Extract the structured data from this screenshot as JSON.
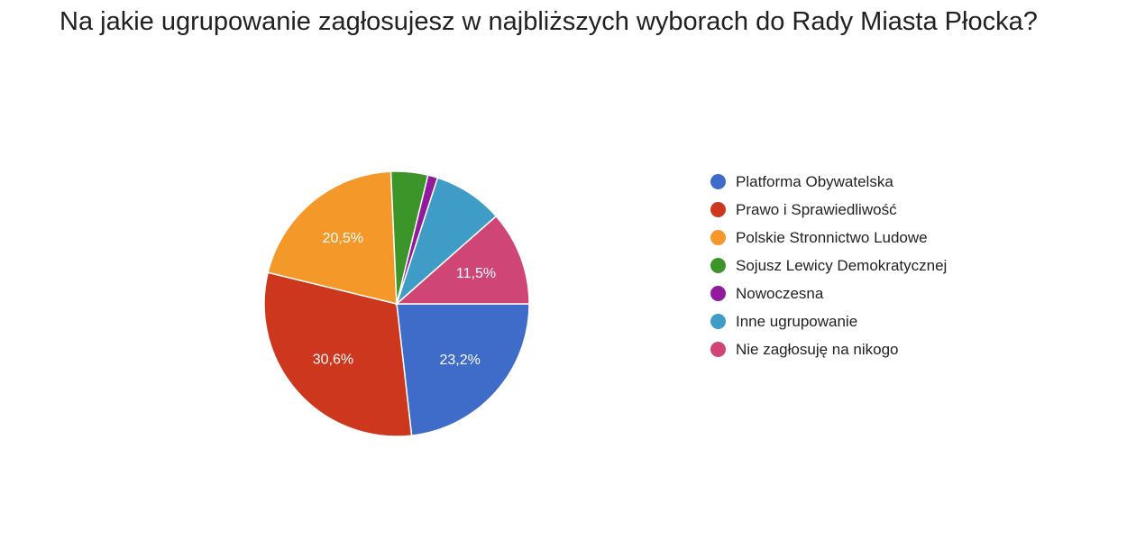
{
  "chart_data": {
    "type": "pie",
    "title": "Na jakie ugrupowanie zagłosujesz w najbliższych wyborach do Rady Miasta Płocka?",
    "legend_position": "right",
    "slices": [
      {
        "label": "Platforma Obywatelska",
        "value": 23.2,
        "value_label": "23,2%",
        "color": "#3f6cc8"
      },
      {
        "label": "Prawo i Sprawiedliwość",
        "value": 30.6,
        "value_label": "30,6%",
        "color": "#cc371e"
      },
      {
        "label": "Polskie Stronnictwo Ludowe",
        "value": 20.5,
        "value_label": "20,5%",
        "color": "#f4982a"
      },
      {
        "label": "Sojusz Lewicy Demokratycznej",
        "value": 4.5,
        "value_label": "",
        "color": "#3b9529"
      },
      {
        "label": "Nowoczesna",
        "value": 1.2,
        "value_label": "",
        "color": "#921a9c"
      },
      {
        "label": "Inne ugrupowanie",
        "value": 8.5,
        "value_label": "",
        "color": "#3e9cc6"
      },
      {
        "label": "Nie zagłosuję na nikogo",
        "value": 11.5,
        "value_label": "11,5%",
        "color": "#cf4575"
      }
    ]
  }
}
